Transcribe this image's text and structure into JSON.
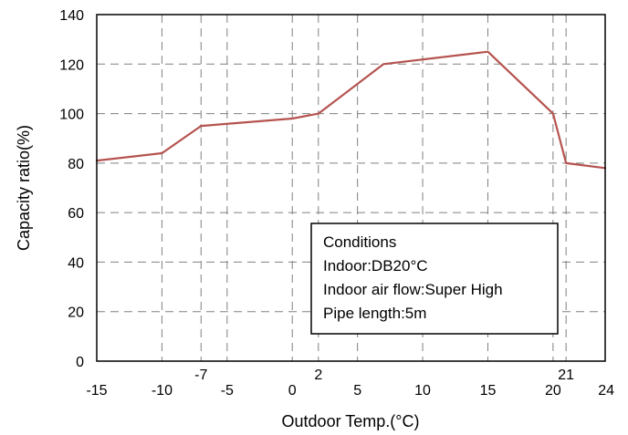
{
  "chart_data": {
    "type": "line",
    "title": "",
    "xlabel": "Outdoor Temp.(°C)",
    "ylabel": "Capacity ratio(%)",
    "xlim": [
      -15,
      24
    ],
    "ylim": [
      0,
      140
    ],
    "grid": true,
    "x_ticks_bottom": [
      "-15",
      "-10",
      "-5",
      "0",
      "5",
      "10",
      "15",
      "20",
      "24"
    ],
    "x_ticks_top": [
      "-7",
      "2",
      "21"
    ],
    "y_ticks": [
      "0",
      "20",
      "40",
      "60",
      "80",
      "100",
      "120",
      "140"
    ],
    "x_tick_values_bottom": [
      -15,
      -10,
      -5,
      0,
      5,
      10,
      15,
      20,
      24
    ],
    "x_tick_values_top": [
      -7,
      2,
      21
    ],
    "y_tick_values": [
      0,
      20,
      40,
      60,
      80,
      100,
      120,
      140
    ],
    "grid_x": [
      -10,
      -7,
      -5,
      0,
      2,
      5,
      10,
      15,
      20,
      21
    ],
    "grid_y": [
      20,
      40,
      60,
      80,
      100,
      120
    ],
    "series": [
      {
        "x": [
          -15,
          -10,
          -7,
          0,
          2,
          7,
          15,
          20,
          21,
          24
        ],
        "y": [
          81,
          84,
          95,
          98,
          100,
          120,
          125,
          100,
          80,
          78
        ],
        "color": "#b5534f"
      }
    ],
    "annotation": {
      "lines": [
        "Conditions",
        "Indoor:DB20°C",
        "Indoor air flow:Super High",
        "Pipe length:5m"
      ]
    }
  }
}
